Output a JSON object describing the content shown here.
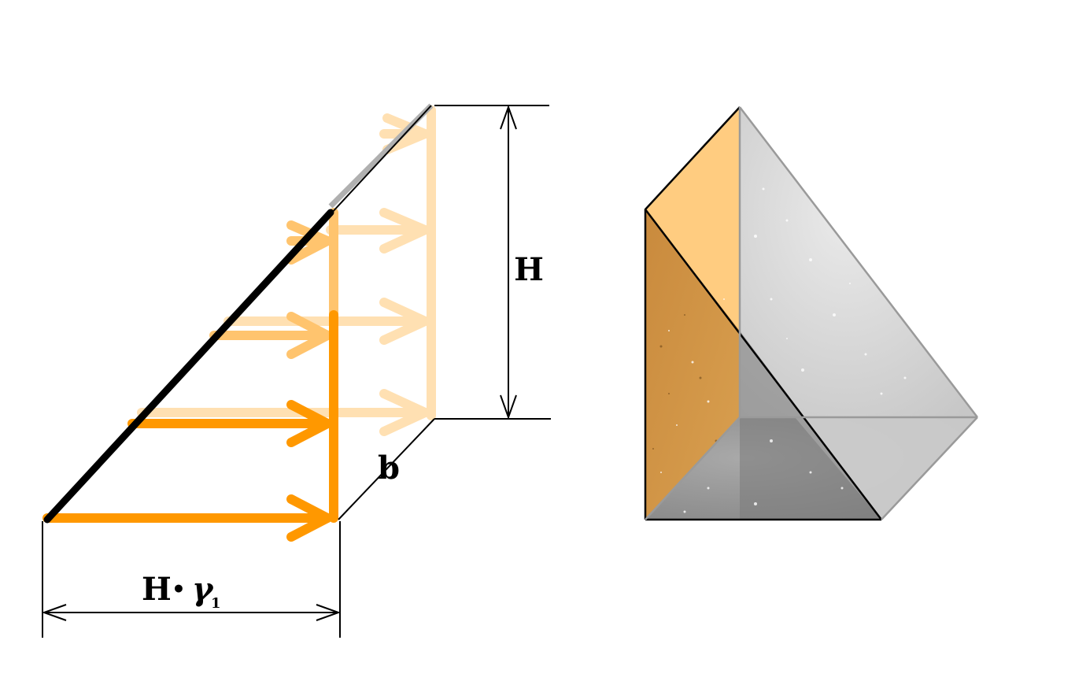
{
  "labels": {
    "height": "H",
    "depth": "b",
    "base_prefix": "H",
    "base_dot": "•",
    "base_gamma": "γ",
    "base_subscript": "1"
  },
  "colors": {
    "orange": "#ff9800",
    "orange_light": "#ffe0b2",
    "prism_orange": "#ffcc80",
    "prism_grey": "#cfcfcf",
    "line": "#000000"
  }
}
